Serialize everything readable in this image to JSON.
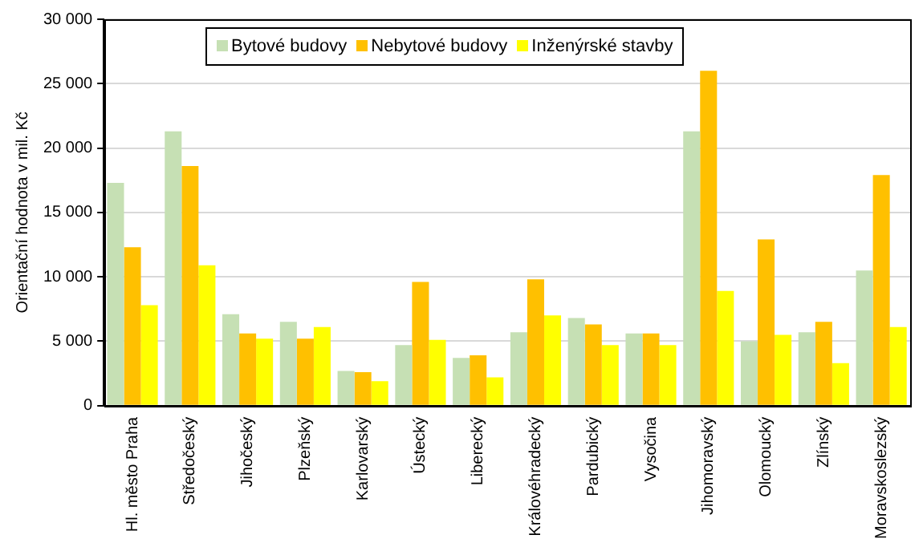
{
  "chart_data": {
    "type": "bar",
    "ylabel": "Orientační hodnota v mil. Kč",
    "categories": [
      "Hl. město Praha",
      "Středočeský",
      "Jihočeský",
      "Plzeňský",
      "Karlovarský",
      "Ústecký",
      "Liberecký",
      "Královéhradecký",
      "Pardubický",
      "Vysočina",
      "Jihomoravský",
      "Olomoucký",
      "Zlínský",
      "Moravskoslezský"
    ],
    "series": [
      {
        "name": "Bytové budovy",
        "color": "#c6e0b4",
        "values": [
          17300,
          21300,
          7100,
          6500,
          2700,
          4700,
          3700,
          5700,
          6800,
          5600,
          21300,
          5000,
          5700,
          10500
        ]
      },
      {
        "name": "Nebytové budovy",
        "color": "#ffc000",
        "values": [
          12300,
          18600,
          5600,
          5200,
          2600,
          9600,
          3900,
          9800,
          6300,
          5600,
          26000,
          12900,
          6500,
          17900
        ]
      },
      {
        "name": "Inženýrské stavby",
        "color": "#ffff00",
        "values": [
          7800,
          10900,
          5200,
          6100,
          1900,
          5100,
          2200,
          7000,
          4700,
          4700,
          8900,
          5500,
          3300,
          6100
        ]
      }
    ],
    "ylim": [
      0,
      30000
    ],
    "yticks": [
      {
        "value": 0,
        "label": "0"
      },
      {
        "value": 5000,
        "label": "5 000"
      },
      {
        "value": 10000,
        "label": "10 000"
      },
      {
        "value": 15000,
        "label": "15 000"
      },
      {
        "value": 20000,
        "label": "20 000"
      },
      {
        "value": 25000,
        "label": "25 000"
      },
      {
        "value": 30000,
        "label": "30 000"
      }
    ],
    "grid": "y",
    "legend": "top"
  }
}
